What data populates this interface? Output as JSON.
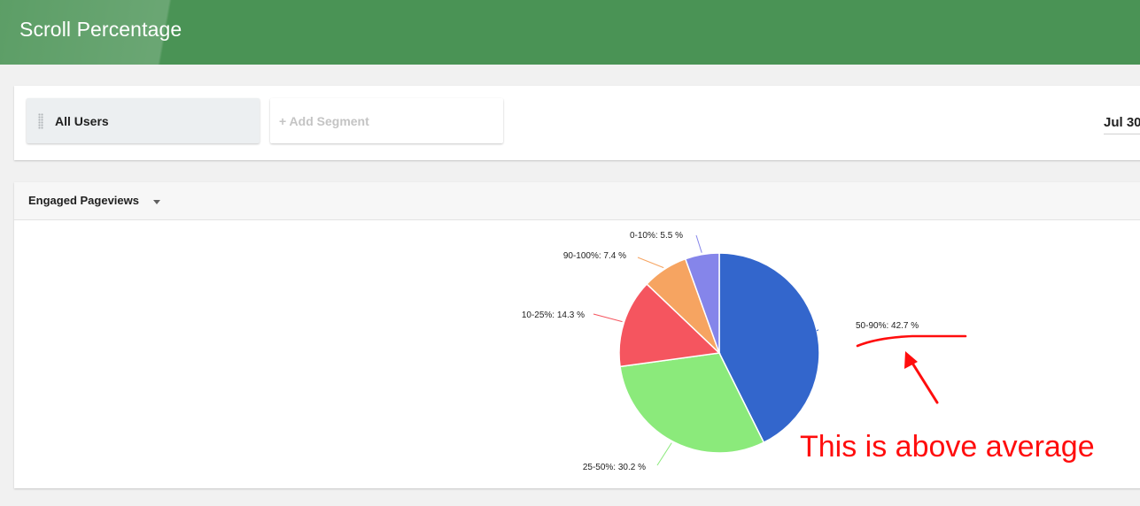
{
  "header": {
    "title": "Scroll Percentage"
  },
  "segments": {
    "active_label": "All Users",
    "add_label": "+ Add Segment",
    "date_range": "Jul 30"
  },
  "chart_card": {
    "metric_label": "Engaged Pageviews",
    "dropdown_icon": "caret-down-icon"
  },
  "chart_data": {
    "type": "pie",
    "slices": [
      {
        "label": "50-90%",
        "value": 42.7,
        "text": "50-90%: 42.7 %",
        "color": "#3366cc"
      },
      {
        "label": "25-50%",
        "value": 30.2,
        "text": "25-50%: 30.2 %",
        "color": "#8bea7b"
      },
      {
        "label": "10-25%",
        "value": 14.3,
        "text": "10-25%: 14.3 %",
        "color": "#f5555f"
      },
      {
        "label": "90-100%",
        "value": 7.4,
        "text": "90-100%: 7.4 %",
        "color": "#f6a461"
      },
      {
        "label": "0-10%",
        "value": 5.5,
        "text": "0-10%: 5.5 %",
        "color": "#8585ea"
      }
    ]
  },
  "annotation": {
    "text": "This is above average",
    "color": "#ff0d0d"
  }
}
